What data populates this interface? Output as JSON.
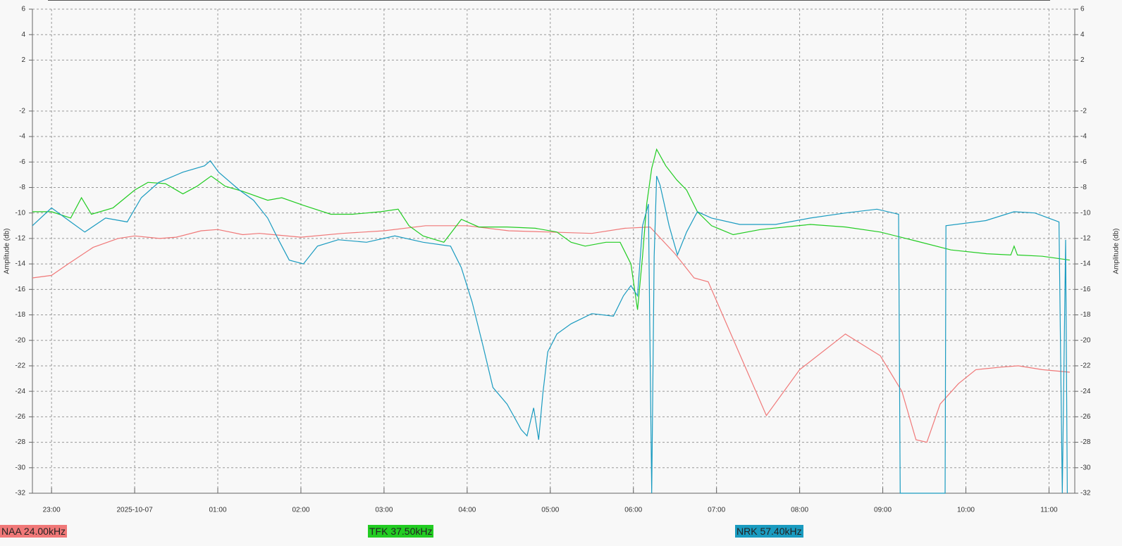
{
  "chart_data": {
    "type": "line",
    "y_label": "Amplitude (db)",
    "ylim": [
      -32,
      6
    ],
    "yticks": [
      6,
      4,
      2,
      -2,
      -4,
      -6,
      -8,
      -10,
      -12,
      -14,
      -16,
      -18,
      -20,
      -22,
      -24,
      -26,
      -28,
      -30,
      -32
    ],
    "xlim": [
      -1.23,
      11.31
    ],
    "xticks": [
      {
        "value": -1,
        "label": "23:00"
      },
      {
        "value": 0,
        "label": "2025-10-07"
      },
      {
        "value": 1,
        "label": "01:00"
      },
      {
        "value": 2,
        "label": "02:00"
      },
      {
        "value": 3,
        "label": "03:00"
      },
      {
        "value": 4,
        "label": "04:00"
      },
      {
        "value": 5,
        "label": "05:00"
      },
      {
        "value": 6,
        "label": "06:00"
      },
      {
        "value": 7,
        "label": "07:00"
      },
      {
        "value": 8,
        "label": "08:00"
      },
      {
        "value": 9,
        "label": "09:00"
      },
      {
        "value": 10,
        "label": "10:00"
      },
      {
        "value": 11,
        "label": "11:00"
      }
    ],
    "grid": true,
    "series": [
      {
        "name": "NAA 24.00kHz",
        "color": "#f07878",
        "x": [
          -1.23,
          -1.0,
          -0.8,
          -0.5,
          -0.2,
          0,
          0.3,
          0.5,
          0.8,
          1.0,
          1.3,
          1.5,
          2.0,
          2.5,
          3.0,
          3.5,
          4.0,
          4.5,
          5.0,
          5.5,
          5.9,
          6.2,
          6.5,
          6.73,
          6.9,
          7.6,
          8.0,
          8.55,
          8.97,
          9.23,
          9.4,
          9.53,
          9.69,
          9.91,
          10.12,
          10.42,
          10.63,
          10.92,
          11.25
        ],
        "values": [
          -15.1,
          -14.9,
          -14.0,
          -12.7,
          -12.0,
          -11.8,
          -12.0,
          -11.9,
          -11.4,
          -11.3,
          -11.7,
          -11.6,
          -11.9,
          -11.6,
          -11.4,
          -11.0,
          -11.0,
          -11.4,
          -11.5,
          -11.6,
          -11.2,
          -11.1,
          -13.2,
          -15.1,
          -15.4,
          -25.9,
          -22.3,
          -19.5,
          -21.2,
          -24.0,
          -27.8,
          -28.0,
          -25.0,
          -23.4,
          -22.3,
          -22.1,
          -22.0,
          -22.3,
          -22.5
        ]
      },
      {
        "name": "TFK 37.50kHz",
        "color": "#22cc22",
        "x": [
          -1.23,
          -1.0,
          -0.77,
          -0.64,
          -0.52,
          -0.26,
          0,
          0.16,
          0.37,
          0.58,
          0.75,
          0.92,
          1.09,
          1.3,
          1.6,
          1.77,
          2.03,
          2.36,
          2.62,
          2.96,
          3.17,
          3.3,
          3.47,
          3.72,
          3.93,
          4.14,
          4.48,
          4.82,
          5.08,
          5.25,
          5.42,
          5.67,
          5.84,
          5.97,
          6.05,
          6.11,
          6.16,
          6.22,
          6.28,
          6.39,
          6.52,
          6.64,
          6.77,
          6.94,
          7.2,
          7.53,
          8.13,
          8.55,
          8.97,
          9.4,
          9.82,
          10.25,
          10.54,
          10.58,
          10.62,
          10.92,
          11.25
        ],
        "values": [
          -9.9,
          -9.9,
          -10.4,
          -8.8,
          -10.1,
          -9.6,
          -8.2,
          -7.6,
          -7.7,
          -8.5,
          -7.9,
          -7.1,
          -7.9,
          -8.3,
          -9.0,
          -8.8,
          -9.4,
          -10.1,
          -10.1,
          -9.9,
          -9.7,
          -11.0,
          -11.8,
          -12.3,
          -10.5,
          -11.1,
          -11.1,
          -11.2,
          -11.5,
          -12.3,
          -12.6,
          -12.3,
          -12.3,
          -14.0,
          -17.6,
          -13.4,
          -9.3,
          -6.5,
          -5.0,
          -6.3,
          -7.4,
          -8.2,
          -9.9,
          -11.0,
          -11.7,
          -11.3,
          -10.9,
          -11.1,
          -11.5,
          -12.2,
          -12.9,
          -13.2,
          -13.3,
          -12.6,
          -13.3,
          -13.4,
          -13.7
        ]
      },
      {
        "name": "NRK 57.40kHz",
        "color": "#1a9bc0",
        "x": [
          -1.23,
          -1.0,
          -0.77,
          -0.6,
          -0.35,
          -0.09,
          0.08,
          0.29,
          0.58,
          0.84,
          0.91,
          1.01,
          1.26,
          1.43,
          1.6,
          1.73,
          1.86,
          2.03,
          2.2,
          2.45,
          2.79,
          3.13,
          3.47,
          3.8,
          3.93,
          4.06,
          4.19,
          4.31,
          4.48,
          4.65,
          4.72,
          4.8,
          4.86,
          4.91,
          4.97,
          5.08,
          5.25,
          5.5,
          5.76,
          5.88,
          5.97,
          6.05,
          6.11,
          6.18,
          6.22,
          6.25,
          6.28,
          6.32,
          6.43,
          6.53,
          6.64,
          6.77,
          6.94,
          7.28,
          7.71,
          8.13,
          8.55,
          8.93,
          9.19,
          9.21,
          9.75,
          9.76,
          10.24,
          10.58,
          10.83,
          11.12,
          11.16,
          11.2,
          11.22
        ],
        "values": [
          -11.0,
          -9.6,
          -10.7,
          -11.5,
          -10.4,
          -10.7,
          -8.8,
          -7.6,
          -6.8,
          -6.3,
          -5.9,
          -6.8,
          -8.2,
          -9.0,
          -10.4,
          -12.1,
          -13.7,
          -14.0,
          -12.6,
          -12.1,
          -12.3,
          -11.8,
          -12.3,
          -12.6,
          -14.3,
          -17.0,
          -20.4,
          -23.7,
          -25.0,
          -27.0,
          -27.5,
          -25.3,
          -27.8,
          -24.2,
          -20.9,
          -19.5,
          -18.7,
          -17.9,
          -18.1,
          -16.5,
          -15.7,
          -16.5,
          -11.0,
          -9.3,
          -32.0,
          -13.4,
          -7.1,
          -7.8,
          -11.0,
          -13.3,
          -11.5,
          -9.9,
          -10.4,
          -10.9,
          -10.9,
          -10.4,
          -10.0,
          -9.7,
          -10.1,
          -32.0,
          -32.0,
          -11.0,
          -10.6,
          -9.9,
          -10.0,
          -10.7,
          -32.0,
          -12.1,
          -32.0
        ]
      }
    ]
  }
}
